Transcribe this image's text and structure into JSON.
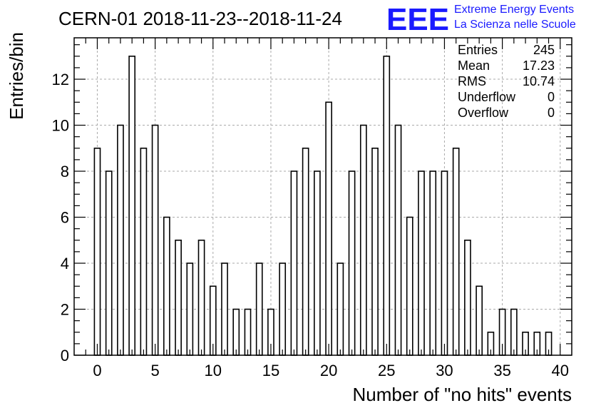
{
  "header": {
    "title": "CERN-01 2018-11-23--2018-11-24",
    "logo_text": "EEE",
    "logo_line1": "Extreme Energy Events",
    "logo_line2": "La Scienza nelle Scuole"
  },
  "stats": [
    {
      "label": "Entries",
      "value": "245"
    },
    {
      "label": "Mean",
      "value": "17.23"
    },
    {
      "label": "RMS",
      "value": "10.74"
    },
    {
      "label": "Underflow",
      "value": "0"
    },
    {
      "label": "Overflow",
      "value": "0"
    }
  ],
  "colors": {
    "logo": "#1a1aff",
    "grid": "#aaaaaa",
    "bars": "#000000"
  },
  "chart_data": {
    "type": "bar",
    "title": "CERN-01 2018-11-23--2018-11-24",
    "xlabel": "Number of \"no hits\" events",
    "ylabel": "Entries/bin",
    "xlim": [
      -2,
      41
    ],
    "ylim": [
      0,
      13.8
    ],
    "grid": true,
    "bin_width": 0.5,
    "x": [
      0,
      1,
      2,
      3,
      4,
      5,
      6,
      7,
      8,
      9,
      10,
      11,
      12,
      13,
      14,
      15,
      16,
      17,
      18,
      19,
      20,
      21,
      22,
      23,
      24,
      25,
      26,
      27,
      28,
      29,
      30,
      31,
      32,
      33,
      34,
      35,
      36,
      37,
      38,
      39
    ],
    "values": [
      9,
      8,
      10,
      13,
      9,
      10,
      6,
      5,
      4,
      5,
      3,
      4,
      2,
      2,
      4,
      2,
      4,
      8,
      9,
      8,
      11,
      4,
      8,
      10,
      9,
      13,
      10,
      6,
      8,
      8,
      8,
      9,
      5,
      3,
      1,
      2,
      2,
      1,
      1,
      1
    ],
    "xticks": [
      0,
      5,
      10,
      15,
      20,
      25,
      30,
      35,
      40
    ],
    "yticks": [
      0,
      2,
      4,
      6,
      8,
      10,
      12
    ]
  }
}
